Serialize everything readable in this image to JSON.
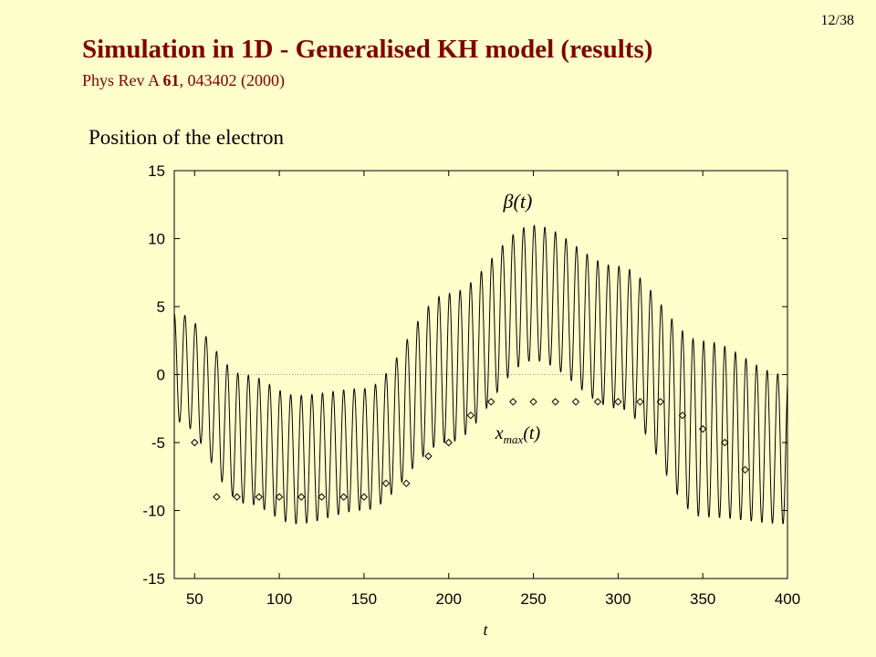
{
  "slide": {
    "page_number": "12/38",
    "title": "Simulation in 1D - Generalised KH model (results)",
    "reference_prefix": "Phys Rev A ",
    "reference_volume": "61",
    "reference_suffix": ", 043402 (2000)",
    "subtitle": "Position of the electron"
  },
  "colors": {
    "background": "#ffffcc",
    "title": "#800000",
    "curve": "#000000",
    "zero_line": "#999999"
  },
  "chart_data": {
    "type": "line",
    "title": "",
    "xlabel": "t",
    "ylabel": "",
    "xlim": [
      38,
      400
    ],
    "ylim": [
      -15,
      15
    ],
    "x_ticks": [
      50,
      100,
      150,
      200,
      250,
      300,
      350,
      400
    ],
    "y_ticks": [
      15,
      10,
      5,
      0,
      -5,
      -10,
      -15
    ],
    "grid": false,
    "zero_line": true,
    "annotations": [
      {
        "text": "β(t)",
        "x": 243,
        "y": 12.8
      },
      {
        "text": "x_max(t)",
        "x": 249,
        "y": -4.2
      }
    ],
    "series": [
      {
        "name": "β(t)",
        "kind": "line",
        "description_points": {
          "envelope_center_curve": "oscillation ~8 per 50 t, period ~6.25",
          "peaks": [
            [
              40,
              4.5
            ],
            [
              80,
              0.0
            ],
            [
              110,
              -1.5
            ],
            [
              150,
              -1.0
            ],
            [
              200,
              6.0
            ],
            [
              250,
              11.0
            ],
            [
              300,
              8.0
            ],
            [
              350,
              2.5
            ],
            [
              400,
              0.0
            ]
          ],
          "troughs": [
            [
              40,
              -3.5
            ],
            [
              80,
              -9.5
            ],
            [
              110,
              -11.0
            ],
            [
              150,
              -10.0
            ],
            [
              200,
              -5.0
            ],
            [
              250,
              1.0
            ],
            [
              300,
              -2.5
            ],
            [
              350,
              -10.5
            ],
            [
              400,
              -11.0
            ]
          ]
        }
      },
      {
        "name": "x_max(t)",
        "kind": "scatter",
        "marker": "diamond",
        "points": [
          [
            50,
            -5
          ],
          [
            63,
            -9
          ],
          [
            75,
            -9
          ],
          [
            88,
            -9
          ],
          [
            100,
            -9
          ],
          [
            113,
            -9
          ],
          [
            125,
            -9
          ],
          [
            138,
            -9
          ],
          [
            150,
            -9
          ],
          [
            163,
            -8
          ],
          [
            175,
            -8
          ],
          [
            188,
            -6
          ],
          [
            200,
            -5
          ],
          [
            213,
            -3
          ],
          [
            225,
            -2
          ],
          [
            238,
            -2
          ],
          [
            250,
            -2
          ],
          [
            263,
            -2
          ],
          [
            275,
            -2
          ],
          [
            288,
            -2
          ],
          [
            300,
            -2
          ],
          [
            313,
            -2
          ],
          [
            325,
            -2
          ],
          [
            338,
            -3
          ],
          [
            350,
            -4
          ],
          [
            363,
            -5
          ],
          [
            375,
            -7
          ]
        ]
      }
    ]
  }
}
